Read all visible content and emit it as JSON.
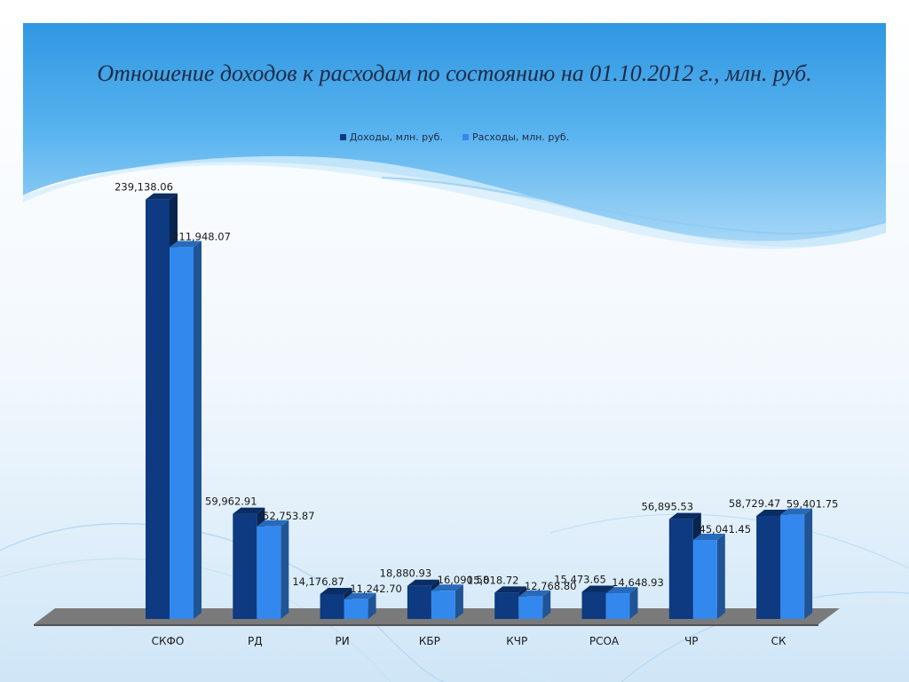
{
  "title": "Отношение доходов к расходам по состоянию  на 01.10.2012 г., млн. руб.",
  "colors": {
    "income": "#0d3a80",
    "expenses": "#3388ee",
    "background_top": "#4aa8e8",
    "floor": "#7a7a7a"
  },
  "chart_data": {
    "type": "bar",
    "title": "Отношение доходов к расходам по состоянию  на 01.10.2012 г., млн. руб.",
    "categories": [
      "СКФО",
      "РД",
      "РИ",
      "КБР",
      "КЧР",
      "РСОА",
      "ЧР",
      "СК"
    ],
    "series": [
      {
        "name": "Доходы, млн. руб.",
        "values": [
          239138.06,
          59962.91,
          14176.87,
          18880.93,
          15018.72,
          15473.65,
          56895.53,
          58729.47
        ],
        "labels": [
          "239,138.06",
          "59,962.91",
          "14,176.87",
          "18,880.93",
          "15,018.72",
          "15,473.65",
          "56,895.53",
          "58,729.47"
        ]
      },
      {
        "name": "Расходы, млн. руб.",
        "values": [
          211948.07,
          52753.87,
          11242.7,
          16090.58,
          12768.8,
          14648.93,
          45041.45,
          59401.75
        ],
        "labels": [
          "211,948.07",
          "52,753.87",
          "11,242.70",
          "16,090.58",
          "12,768.80",
          "14,648.93",
          "45,041.45",
          "59,401.75"
        ]
      }
    ],
    "xlabel": "",
    "ylabel": "",
    "ylim": [
      0,
      240000
    ],
    "grid": false,
    "legend_position": "top-center",
    "style": "3d-column"
  }
}
